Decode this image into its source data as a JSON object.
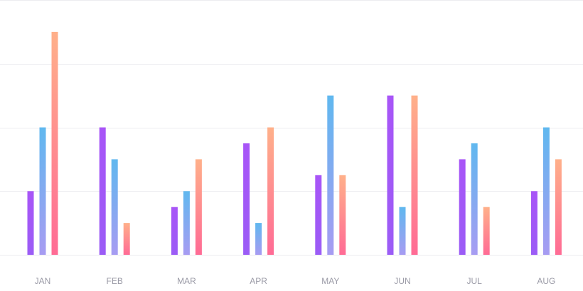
{
  "chart_data": {
    "type": "bar",
    "title": "",
    "xlabel": "",
    "ylabel": "",
    "categories": [
      "JAN",
      "FEB",
      "MAR",
      "APR",
      "MAY",
      "JUN",
      "JUL",
      "AUG"
    ],
    "ylim": [
      0,
      80
    ],
    "gridlines": [
      0,
      20,
      40,
      60,
      80
    ],
    "grid": true,
    "legend": "none",
    "series": [
      {
        "values": [
          20,
          40,
          15,
          35,
          25,
          50,
          30,
          20
        ],
        "color_top": "#a855f7",
        "color_bottom": "#9b5cf6"
      },
      {
        "values": [
          40,
          30,
          20,
          10,
          50,
          15,
          35,
          40
        ],
        "color_top": "#60b8ef",
        "color_bottom": "#a79cf2"
      },
      {
        "values": [
          70,
          10,
          30,
          40,
          25,
          50,
          15,
          30
        ],
        "color_top": "#ffb08a",
        "color_bottom": "#ff6b95"
      }
    ]
  }
}
